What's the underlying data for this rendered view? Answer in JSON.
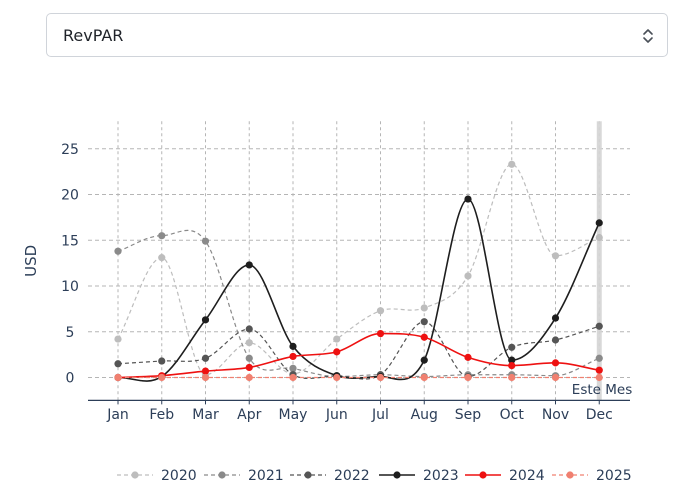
{
  "selector": {
    "value": "RevPAR",
    "icon": "chevron-up-down-icon"
  },
  "chart_data": {
    "type": "line",
    "title": "",
    "xlabel": "",
    "ylabel": "USD",
    "ylim": [
      -2.5,
      28
    ],
    "yticks": [
      0,
      5,
      10,
      15,
      20,
      25
    ],
    "categories": [
      "Jan",
      "Feb",
      "Mar",
      "Apr",
      "May",
      "Jun",
      "Jul",
      "Aug",
      "Sep",
      "Oct",
      "Nov",
      "Dec"
    ],
    "grid": true,
    "legend_position": "bottom-right",
    "annotation": {
      "text": "Este Mes",
      "category": "Dec"
    },
    "series": [
      {
        "name": "2020",
        "color": "#bdbdbd",
        "dash": true,
        "values": [
          4.2,
          13.1,
          0.3,
          3.8,
          0.4,
          4.2,
          7.3,
          7.6,
          11.1,
          23.3,
          13.3,
          15.3
        ]
      },
      {
        "name": "2021",
        "color": "#8a8a8a",
        "dash": true,
        "values": [
          13.8,
          15.5,
          14.9,
          2.1,
          1.0,
          0.1,
          0.3,
          0.1,
          0.3,
          0.3,
          0.2,
          2.1
        ]
      },
      {
        "name": "2022",
        "color": "#555555",
        "dash": true,
        "values": [
          1.5,
          1.8,
          2.1,
          5.3,
          0.3,
          0.2,
          0.3,
          6.1,
          0.1,
          3.3,
          4.1,
          5.6
        ]
      },
      {
        "name": "2023",
        "color": "#1e1e1e",
        "dash": false,
        "values": [
          0.0,
          0.1,
          6.3,
          12.3,
          3.4,
          0.2,
          0.1,
          1.9,
          19.5,
          1.9,
          6.5,
          16.9
        ]
      },
      {
        "name": "2024",
        "color": "#ee1111",
        "dash": false,
        "values": [
          0.0,
          0.2,
          0.7,
          1.1,
          2.3,
          2.8,
          4.8,
          4.4,
          2.2,
          1.3,
          1.6,
          0.8
        ]
      },
      {
        "name": "2025",
        "color": "#f08070",
        "dash": true,
        "values": [
          0.0,
          0.0,
          0.0,
          0.0,
          0.0,
          0.0,
          0.0,
          0.0,
          0.0,
          0.0,
          0.0,
          0.0
        ]
      }
    ]
  }
}
